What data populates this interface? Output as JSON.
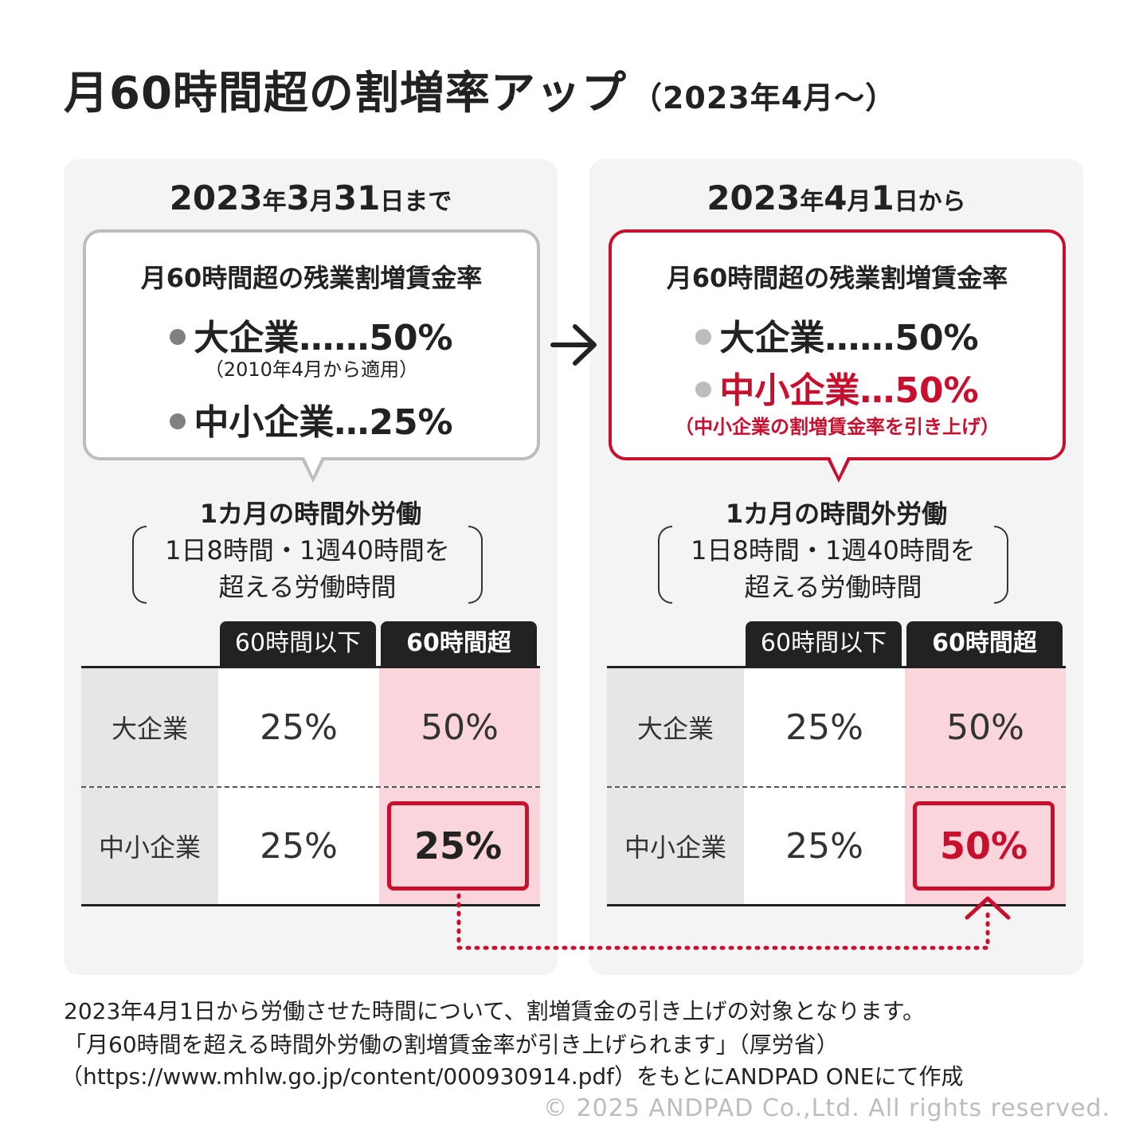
{
  "title": {
    "main": "月60時間超の割増率アップ",
    "sub": "（2023年4月〜）"
  },
  "panels": {
    "before": {
      "heading_date": "2023",
      "heading_yr": "年",
      "heading_md": "3",
      "heading_m": "月",
      "heading_d": "31",
      "heading_tail": "日まで",
      "bubble_title": "月60時間超の残業割増賃金率",
      "line1": "大企業……50%",
      "line1_note": "（2010年4月から適用）",
      "line2": "中小企業…25%"
    },
    "after": {
      "heading_date": "2023",
      "heading_yr": "年",
      "heading_md": "4",
      "heading_m": "月",
      "heading_d": "1",
      "heading_tail": "日から",
      "bubble_title": "月60時間超の残業割増賃金率",
      "line1": "大企業……50%",
      "line2": "中小企業…50%",
      "line2_note": "（中小企業の割増賃金率を引き上げ）"
    }
  },
  "overtime": {
    "title": "1カ月の時間外労働",
    "def_line1": "1日8時間・1週40時間を",
    "def_line2": "超える労働時間"
  },
  "table": {
    "col1": "60時間以下",
    "col2": "60時間超",
    "row_large": "大企業",
    "row_sme": "中小企業",
    "before": {
      "large_le60": "25%",
      "large_gt60": "50%",
      "sme_le60": "25%",
      "sme_gt60": "25%"
    },
    "after": {
      "large_le60": "25%",
      "large_gt60": "50%",
      "sme_le60": "25%",
      "sme_gt60": "50%"
    }
  },
  "footer": {
    "line1": "2023年4月1日から労働させた時間について、割増賃金の引き上げの対象となります。",
    "line2": "「月60時間を超える時間外労働の割増賃金率が引き上げられます」（厚労省）",
    "line3": "（https://www.mhlw.go.jp/content/000930914.pdf）をもとにANDPAD ONEにて作成",
    "copyright": "© 2025 ANDPAD Co.,Ltd. All rights reserved."
  },
  "colors": {
    "accent_red": "#c8102e",
    "highlight_pink": "#fbd5dc",
    "panel_bg": "#f4f4f4",
    "header_dark": "#222222"
  }
}
